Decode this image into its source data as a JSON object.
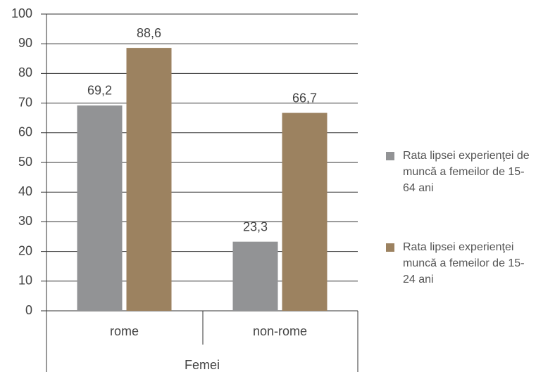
{
  "chart_data": {
    "type": "bar",
    "categories": [
      "rome",
      "non-rome"
    ],
    "x_label": "Femei",
    "series": [
      {
        "name": "Rata lipsei experienţei de muncă a femeilor de 15-64 ani",
        "color": "#929395",
        "values": [
          69.2,
          23.3
        ],
        "value_labels": [
          "69,2",
          "23,3"
        ]
      },
      {
        "name": "Rata lipsei experienţei muncă a femeilor de 15-24 ani",
        "color": "#9c8260",
        "values": [
          88.6,
          66.7
        ],
        "value_labels": [
          "88,6",
          "66,7"
        ]
      }
    ],
    "ylim": [
      0,
      100
    ],
    "yticks": [
      0,
      10,
      20,
      30,
      40,
      50,
      60,
      70,
      80,
      90,
      100
    ],
    "grid": true,
    "legend": "right"
  }
}
